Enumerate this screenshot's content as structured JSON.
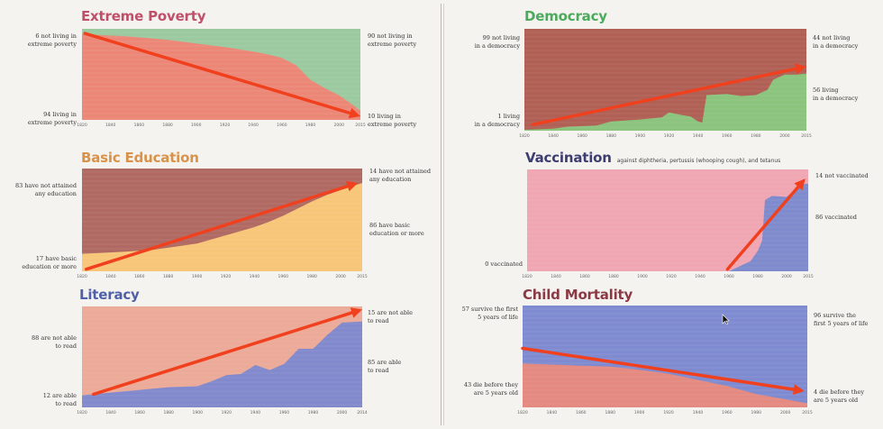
{
  "arrow_color": "#f0401e",
  "chart_data": [
    {
      "id": "poverty",
      "type": "area",
      "title": "Extreme Poverty",
      "title_color": "#c0506a",
      "colors": {
        "top": "#9ccaa0",
        "bottom": "#ec8778"
      },
      "x_ticks": [
        "1820",
        "1840",
        "1860",
        "1880",
        "1900",
        "1920",
        "1940",
        "1960",
        "1980",
        "2000",
        "2015"
      ],
      "xlim": [
        1820,
        2015
      ],
      "ylim": [
        0,
        100
      ],
      "series": {
        "x": [
          1820,
          1850,
          1880,
          1900,
          1920,
          1940,
          1950,
          1960,
          1970,
          1980,
          1990,
          2000,
          2010,
          2015
        ],
        "bottom": [
          94,
          92,
          88,
          84,
          80,
          75,
          72,
          68,
          60,
          44,
          35,
          27,
          16,
          10
        ]
      },
      "labels": {
        "left_top": "6 not living in\nextreme poverty",
        "left_bottom": "94 living in\nextreme poverty",
        "right_top": "90 not living in\nextreme poverty",
        "right_bottom": "10 living in\nextreme poverty"
      }
    },
    {
      "id": "education",
      "type": "area",
      "title": "Basic Education",
      "title_color": "#d8924a",
      "colors": {
        "top": "#b06a63",
        "bottom": "#f8c679"
      },
      "x_ticks": [
        "1820",
        "1840",
        "1860",
        "1880",
        "1900",
        "1920",
        "1940",
        "1960",
        "1980",
        "2000",
        "2015"
      ],
      "xlim": [
        1820,
        2015
      ],
      "ylim": [
        0,
        100
      ],
      "series": {
        "x": [
          1820,
          1850,
          1870,
          1900,
          1920,
          1940,
          1950,
          1960,
          1970,
          1980,
          1990,
          2000,
          2015
        ],
        "bottom": [
          17,
          19,
          21,
          27,
          35,
          43,
          48,
          54,
          61,
          68,
          74,
          79,
          86
        ]
      },
      "labels": {
        "left_top": "83 have not attained\nany education",
        "left_bottom": "17 have basic\neducation or more",
        "right_top": "14 have not attained\nany education",
        "right_bottom": "86 have basic\neducation or more"
      }
    },
    {
      "id": "literacy",
      "type": "area",
      "title": "Literacy",
      "title_color": "#5060a8",
      "colors": {
        "top": "#ecaa99",
        "bottom": "#8289cc"
      },
      "x_ticks": [
        "1820",
        "1840",
        "1860",
        "1880",
        "1900",
        "1920",
        "1940",
        "1960",
        "1980",
        "2000",
        "2014"
      ],
      "xlim": [
        1820,
        2014
      ],
      "ylim": [
        0,
        100
      ],
      "series": {
        "x": [
          1820,
          1850,
          1880,
          1900,
          1910,
          1920,
          1930,
          1940,
          1950,
          1960,
          1970,
          1980,
          1990,
          2000,
          2014
        ],
        "bottom": [
          12,
          16,
          20,
          21,
          26,
          32,
          33,
          42,
          37,
          43,
          58,
          58,
          72,
          84,
          85
        ]
      },
      "labels": {
        "left_top": "88 are not able\nto read",
        "left_bottom": "12 are able\nto read",
        "right_top": "15 are not able\nto read",
        "right_bottom": "85 are able\nto read"
      }
    },
    {
      "id": "democracy",
      "type": "area",
      "title": "Democracy",
      "title_color": "#4caa5e",
      "colors": {
        "top": "#b06055",
        "bottom": "#8cc47e"
      },
      "x_ticks": [
        "1820",
        "1840",
        "1860",
        "1880",
        "1900",
        "1920",
        "1940",
        "1960",
        "1980",
        "2000",
        "2015"
      ],
      "xlim": [
        1820,
        2015
      ],
      "ylim": [
        0,
        100
      ],
      "series": {
        "x": [
          1820,
          1840,
          1850,
          1870,
          1880,
          1900,
          1915,
          1920,
          1930,
          1935,
          1940,
          1943,
          1946,
          1960,
          1970,
          1980,
          1988,
          1992,
          2000,
          2008,
          2015
        ],
        "bottom": [
          1,
          2,
          4,
          5,
          9,
          11,
          13,
          18,
          15,
          14,
          9,
          8,
          35,
          36,
          34,
          35,
          40,
          50,
          55,
          55,
          56
        ]
      },
      "labels": {
        "left_top": "99 not living\nin a democracy",
        "left_bottom": "1 living\nin a democracy",
        "right_top": "44 not living\nin a democracy",
        "right_bottom": "56 living\nin a democracy"
      }
    },
    {
      "id": "vaccination",
      "type": "area",
      "title": "Vaccination",
      "subtitle": "against diphtheria, pertussis (whooping cough), and tetanus",
      "title_color": "#3c3d70",
      "colors": {
        "top": "#f0a7b3",
        "bottom": "#7f8bcc"
      },
      "x_ticks": [
        "1820",
        "1840",
        "1860",
        "1880",
        "1900",
        "1920",
        "1940",
        "1960",
        "1980",
        "2000",
        "2015"
      ],
      "xlim": [
        1820,
        2015
      ],
      "ylim": [
        0,
        100
      ],
      "series": {
        "x": [
          1820,
          1960,
          1975,
          1980,
          1983,
          1985,
          1990,
          2000,
          2010,
          2015
        ],
        "bottom": [
          0,
          0,
          10,
          20,
          30,
          70,
          74,
          73,
          85,
          86
        ]
      },
      "labels": {
        "left_bottom": "0 vaccinated",
        "right_top": "14 not vaccinated",
        "right_bottom": "86 vaccinated"
      }
    },
    {
      "id": "mortality",
      "type": "area",
      "title": "Child Mortality",
      "title_color": "#8a3a45",
      "colors": {
        "top": "#7f8bd0",
        "bottom": "#e48a80"
      },
      "x_ticks": [
        "1820",
        "1840",
        "1860",
        "1880",
        "1900",
        "1920",
        "1940",
        "1960",
        "1980",
        "2000",
        "2015"
      ],
      "xlim": [
        1820,
        2015
      ],
      "ylim": [
        0,
        100
      ],
      "series": {
        "x": [
          1820,
          1860,
          1880,
          1900,
          1920,
          1940,
          1960,
          1980,
          2000,
          2015
        ],
        "bottom": [
          43,
          41,
          40,
          37,
          33,
          27,
          21,
          13,
          8,
          4
        ]
      },
      "labels": {
        "left_top": "57 survive the first\n5 years of life",
        "left_bottom": "43 die before they\nare 5 years old",
        "right_top": "96 survive the\nfirst 5 years of life",
        "right_bottom": "4 die before they\nare 5 years old"
      }
    }
  ]
}
